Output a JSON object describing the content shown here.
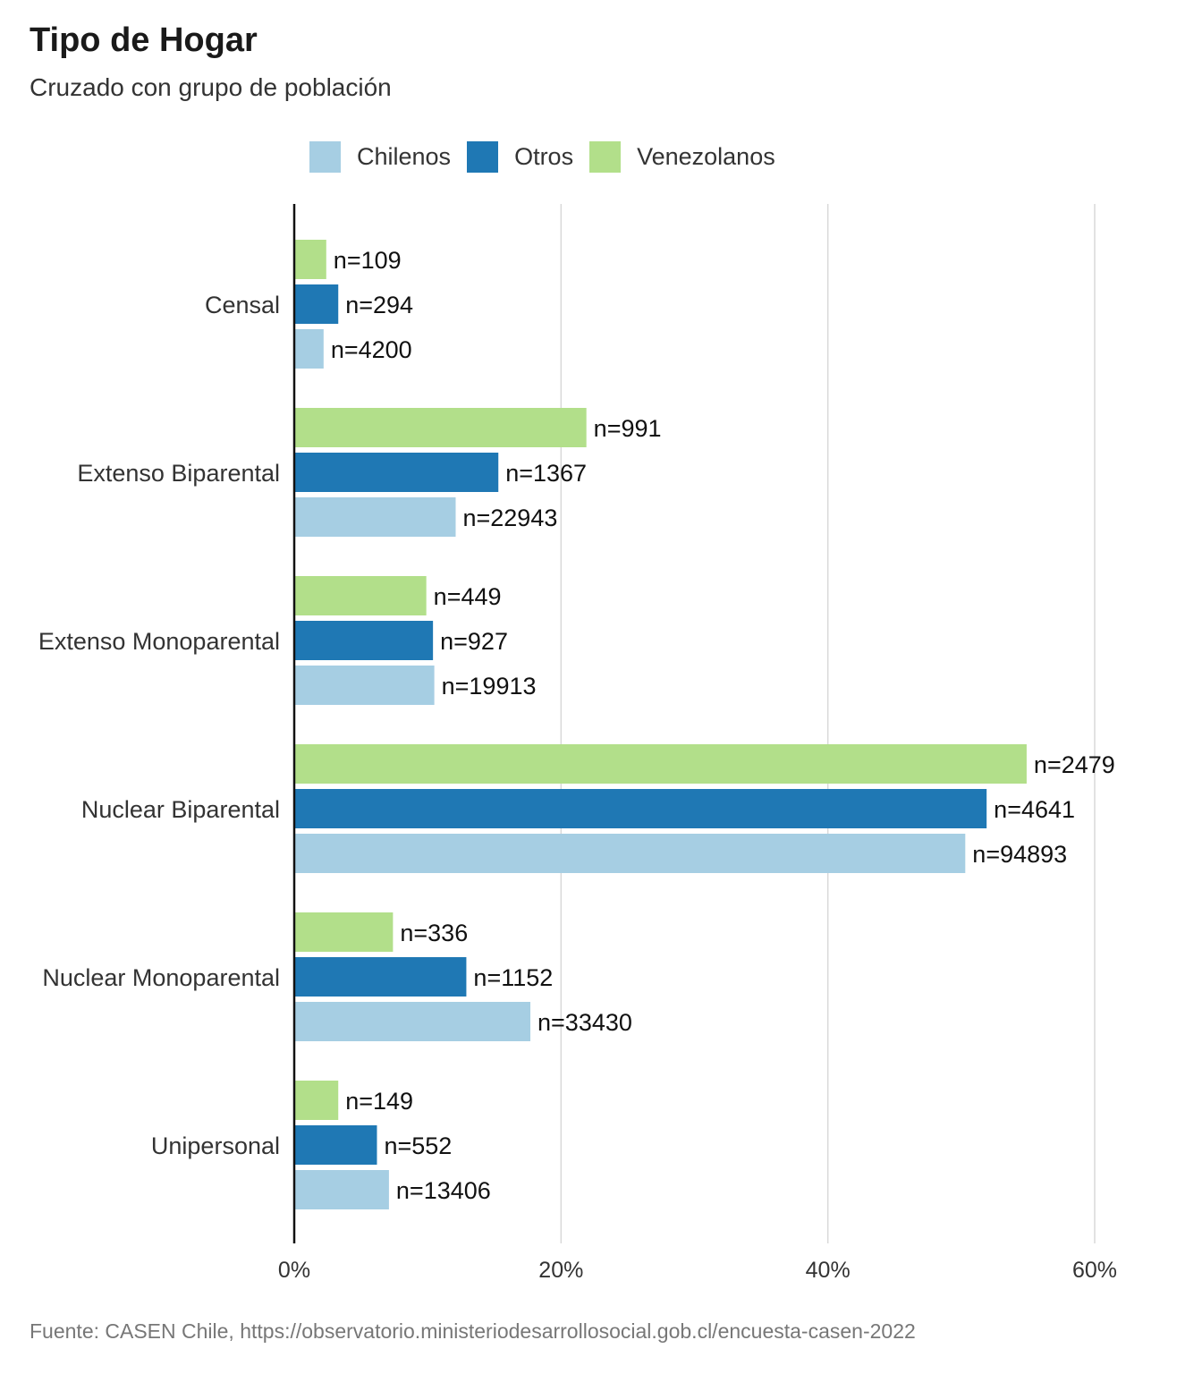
{
  "title": "Tipo de Hogar",
  "subtitle": "Cruzado con grupo de población",
  "source": "Fuente: CASEN Chile, https://observatorio.ministeriodesarrollosocial.gob.cl/encuesta-casen-2022",
  "legend": [
    {
      "name": "Chilenos",
      "color": "#a6cee3"
    },
    {
      "name": "Otros",
      "color": "#1f78b4"
    },
    {
      "name": "Venezolanos",
      "color": "#b2df8a"
    }
  ],
  "chart_data": {
    "type": "bar",
    "orientation": "horizontal",
    "categories": [
      "Censal",
      "Extenso Biparental",
      "Extenso Monoparental",
      "Nuclear Biparental",
      "Nuclear Monoparental",
      "Unipersonal"
    ],
    "xlim": [
      0,
      60
    ],
    "xticks": [
      0,
      20,
      40,
      60
    ],
    "xtick_labels": [
      "0%",
      "20%",
      "40%",
      "60%"
    ],
    "grid": true,
    "legend_position": "top",
    "series": [
      {
        "name": "Venezolanos",
        "color": "#b2df8a",
        "values": [
          2.4,
          21.9,
          9.9,
          54.9,
          7.4,
          3.3
        ],
        "labels": [
          "n=109",
          "n=991",
          "n=449",
          "n=2479",
          "n=336",
          "n=149"
        ]
      },
      {
        "name": "Otros",
        "color": "#1f78b4",
        "values": [
          3.3,
          15.3,
          10.4,
          51.9,
          12.9,
          6.2
        ],
        "labels": [
          "n=294",
          "n=1367",
          "n=927",
          "n=4641",
          "n=1152",
          "n=552"
        ]
      },
      {
        "name": "Chilenos",
        "color": "#a6cee3",
        "values": [
          2.2,
          12.1,
          10.5,
          50.3,
          17.7,
          7.1
        ],
        "labels": [
          "n=4200",
          "n=22943",
          "n=19913",
          "n=94893",
          "n=33430",
          "n=13406"
        ]
      }
    ]
  }
}
